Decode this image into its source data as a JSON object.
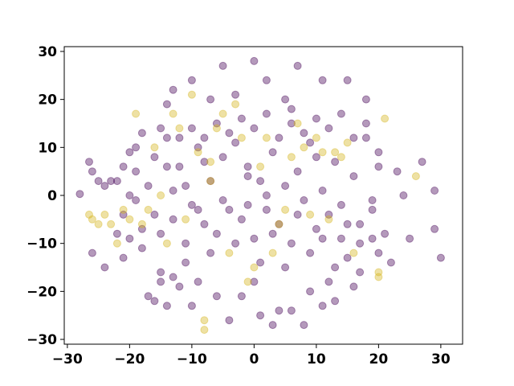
{
  "chart_data": {
    "type": "scatter",
    "title": "",
    "xlabel": "",
    "ylabel": "",
    "xlim": [
      -30.5,
      33.5
    ],
    "ylim": [
      -31,
      31
    ],
    "xticks": [
      -30,
      -20,
      -10,
      0,
      10,
      20,
      30
    ],
    "yticks": [
      -30,
      -20,
      -10,
      0,
      10,
      20,
      30
    ],
    "xtick_labels": [
      "−30",
      "−20",
      "−10",
      "0",
      "10",
      "20",
      "30"
    ],
    "ytick_labels": [
      "−30",
      "−20",
      "−10",
      "0",
      "10",
      "20",
      "30"
    ],
    "grid": false,
    "legend": "none",
    "marker_alpha": 0.4,
    "series": [
      {
        "color": "#440154",
        "points": [
          [
            -28,
            0.3
          ],
          [
            -26.5,
            7
          ],
          [
            -26,
            5
          ],
          [
            -26,
            -12
          ],
          [
            -25,
            3
          ],
          [
            -24,
            2
          ],
          [
            -24,
            -15
          ],
          [
            -23,
            3
          ],
          [
            -22,
            3
          ],
          [
            -21,
            6
          ],
          [
            -21,
            -13
          ],
          [
            -20,
            0
          ],
          [
            -20,
            -9
          ],
          [
            -19,
            5
          ],
          [
            -18,
            13
          ],
          [
            -18,
            -7
          ],
          [
            -17,
            -21
          ],
          [
            -16,
            -22
          ],
          [
            -15,
            14
          ],
          [
            -15,
            -16
          ],
          [
            -15,
            -18
          ],
          [
            -14,
            19
          ],
          [
            -14,
            -23
          ],
          [
            -13,
            22
          ],
          [
            -13,
            -17
          ],
          [
            -12,
            -19
          ],
          [
            -11,
            -10
          ],
          [
            -10,
            24
          ],
          [
            -10,
            -23
          ],
          [
            -9,
            -18
          ],
          [
            -8,
            7
          ],
          [
            -7,
            20
          ],
          [
            -6,
            -21
          ],
          [
            -5,
            27
          ],
          [
            -4,
            -26
          ],
          [
            -3,
            21
          ],
          [
            -2,
            -21
          ],
          [
            -1,
            4
          ],
          [
            0,
            28
          ],
          [
            0,
            -18
          ],
          [
            1,
            -25
          ],
          [
            2,
            24
          ],
          [
            2,
            0
          ],
          [
            3,
            -27
          ],
          [
            4,
            -24
          ],
          [
            5,
            20
          ],
          [
            6,
            18
          ],
          [
            6,
            -24
          ],
          [
            7,
            27
          ],
          [
            8,
            -27
          ],
          [
            9,
            -20
          ],
          [
            10,
            16
          ],
          [
            11,
            24
          ],
          [
            11,
            -23
          ],
          [
            12,
            -18
          ],
          [
            13,
            -22
          ],
          [
            14,
            -9
          ],
          [
            15,
            24
          ],
          [
            16,
            -19
          ],
          [
            17,
            -10
          ],
          [
            18,
            20
          ],
          [
            19,
            -1
          ],
          [
            20,
            9
          ],
          [
            21,
            -8
          ],
          [
            22,
            -14
          ],
          [
            23,
            5
          ],
          [
            24,
            0
          ],
          [
            25,
            -9
          ],
          [
            27,
            7
          ],
          [
            29,
            1
          ],
          [
            29,
            -7
          ],
          [
            30,
            -13
          ],
          [
            -22,
            -8
          ],
          [
            -20,
            9
          ],
          [
            -19,
            -1
          ],
          [
            -17,
            2
          ],
          [
            -16,
            -4
          ],
          [
            -14,
            6
          ],
          [
            -13,
            -5
          ],
          [
            -12,
            12
          ],
          [
            -11,
            2
          ],
          [
            -10,
            -2
          ],
          [
            -9,
            10
          ],
          [
            -8,
            -6
          ],
          [
            -7,
            3
          ],
          [
            -6,
            -8
          ],
          [
            -5,
            8
          ],
          [
            -4,
            -3
          ],
          [
            -3,
            11
          ],
          [
            -2,
            -5
          ],
          [
            -1,
            6
          ],
          [
            0,
            -9
          ],
          [
            1,
            3
          ],
          [
            2,
            -3
          ],
          [
            3,
            9
          ],
          [
            4,
            -6
          ],
          [
            5,
            2
          ],
          [
            6,
            -10
          ],
          [
            7,
            5
          ],
          [
            8,
            -1
          ],
          [
            9,
            11
          ],
          [
            10,
            -7
          ],
          [
            11,
            1
          ],
          [
            12,
            -4
          ],
          [
            13,
            7
          ],
          [
            14,
            -2
          ],
          [
            15,
            -13
          ],
          [
            16,
            4
          ],
          [
            17,
            -6
          ],
          [
            18,
            12
          ],
          [
            19,
            -3
          ],
          [
            20,
            -12
          ],
          [
            -21,
            -4
          ],
          [
            -18,
            -11
          ],
          [
            -15,
            -8
          ],
          [
            -13,
            1
          ],
          [
            -11,
            -14
          ],
          [
            -9,
            -3
          ],
          [
            -7,
            -12
          ],
          [
            -5,
            -1
          ],
          [
            -3,
            -10
          ],
          [
            -1,
            -2
          ],
          [
            1,
            -14
          ],
          [
            3,
            -8
          ],
          [
            5,
            -15
          ],
          [
            7,
            -4
          ],
          [
            9,
            -12
          ],
          [
            11,
            -9
          ],
          [
            13,
            -15
          ],
          [
            15,
            -6
          ],
          [
            17,
            -16
          ],
          [
            19,
            -9
          ],
          [
            -19,
            10
          ],
          [
            -16,
            8
          ],
          [
            -14,
            12
          ],
          [
            -12,
            6
          ],
          [
            -10,
            14
          ],
          [
            -8,
            12
          ],
          [
            -6,
            15
          ],
          [
            -4,
            13
          ],
          [
            -2,
            16
          ],
          [
            0,
            14
          ],
          [
            2,
            17
          ],
          [
            4,
            12
          ],
          [
            6,
            15
          ],
          [
            8,
            13
          ],
          [
            10,
            8
          ],
          [
            12,
            14
          ],
          [
            14,
            17
          ],
          [
            16,
            12
          ],
          [
            18,
            15
          ],
          [
            20,
            6
          ]
        ]
      },
      {
        "color": "#d4b41c",
        "points": [
          [
            -26.5,
            -4
          ],
          [
            -26,
            -5
          ],
          [
            -25,
            -6
          ],
          [
            -24,
            -4
          ],
          [
            -23,
            -6
          ],
          [
            -22,
            -10
          ],
          [
            -21,
            -3
          ],
          [
            -20,
            -5
          ],
          [
            -19,
            17
          ],
          [
            -18,
            -6
          ],
          [
            -17,
            -3
          ],
          [
            -16,
            10
          ],
          [
            -15,
            0
          ],
          [
            -14,
            -10
          ],
          [
            -13,
            17
          ],
          [
            -12,
            14
          ],
          [
            -11,
            -5
          ],
          [
            -10,
            21
          ],
          [
            -9,
            9
          ],
          [
            -8,
            -26
          ],
          [
            -8,
            -28
          ],
          [
            -7,
            7
          ],
          [
            -7,
            3
          ],
          [
            -6,
            14
          ],
          [
            -5,
            17
          ],
          [
            -4,
            -12
          ],
          [
            -3,
            19
          ],
          [
            -2,
            12
          ],
          [
            -1,
            -18
          ],
          [
            0,
            -15
          ],
          [
            1,
            6
          ],
          [
            2,
            12
          ],
          [
            3,
            -12
          ],
          [
            4,
            -6
          ],
          [
            5,
            -3
          ],
          [
            6,
            8
          ],
          [
            7,
            15
          ],
          [
            8,
            10
          ],
          [
            9,
            -4
          ],
          [
            10,
            12
          ],
          [
            11,
            9
          ],
          [
            12,
            -5
          ],
          [
            13,
            9
          ],
          [
            14,
            8
          ],
          [
            15,
            11
          ],
          [
            16,
            -12
          ],
          [
            20,
            -16
          ],
          [
            20,
            -17
          ],
          [
            21,
            16
          ],
          [
            26,
            4
          ]
        ]
      }
    ]
  }
}
